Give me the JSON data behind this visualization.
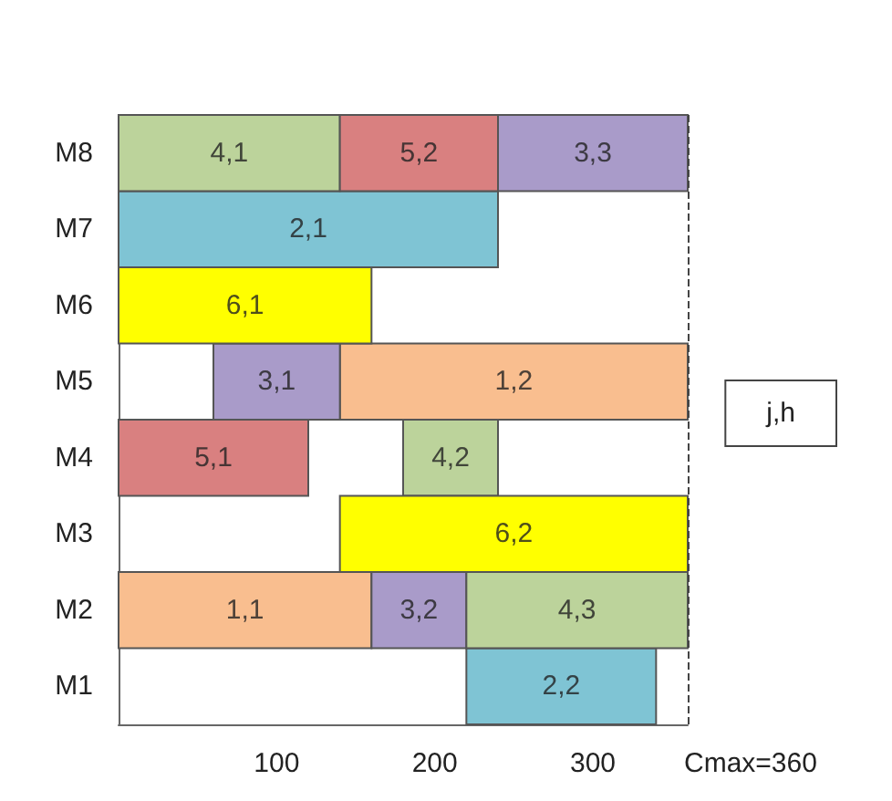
{
  "chart_data": {
    "type": "bar",
    "orientation": "horizontal",
    "categories": [
      "M8",
      "M7",
      "M6",
      "M5",
      "M4",
      "M3",
      "M2",
      "M1"
    ],
    "series": [
      {
        "color": "#f9be8f",
        "base": [
          null,
          null,
          null,
          140,
          null,
          null,
          0,
          null
        ],
        "values": [
          null,
          null,
          null,
          220,
          null,
          null,
          160,
          null
        ]
      },
      {
        "color": "#7fc4d4",
        "base": [
          null,
          0,
          null,
          null,
          null,
          null,
          null,
          220
        ],
        "values": [
          null,
          240,
          null,
          null,
          null,
          null,
          null,
          120
        ]
      },
      {
        "color": "#a99bc9",
        "base": [
          240,
          null,
          null,
          60,
          null,
          null,
          160,
          null
        ],
        "values": [
          120,
          null,
          null,
          80,
          null,
          null,
          60,
          null
        ]
      },
      {
        "color": "#bcd39b",
        "base": [
          0,
          null,
          null,
          null,
          180,
          null,
          220,
          null
        ],
        "values": [
          140,
          null,
          null,
          null,
          60,
          null,
          140,
          null
        ]
      },
      {
        "color": "#d98080",
        "base": [
          140,
          null,
          null,
          null,
          0,
          null,
          null,
          null
        ],
        "values": [
          100,
          null,
          null,
          null,
          120,
          null,
          null,
          null
        ]
      },
      {
        "color": "#ffff00",
        "base": [
          null,
          null,
          0,
          null,
          null,
          140,
          null,
          null
        ],
        "values": [
          null,
          null,
          160,
          null,
          null,
          220,
          null,
          null
        ]
      }
    ],
    "xlim": [
      0,
      360
    ],
    "xticks": [
      100,
      200,
      300
    ],
    "ref_lines": [
      {
        "axis": "x",
        "value": 360,
        "label": "Cmax=360",
        "line_style": "dashed"
      }
    ],
    "annotations": [
      "j,h",
      {
        "text": "1,2",
        "x": 250,
        "y": "M5"
      },
      {
        "text": "1,1",
        "x": 80,
        "y": "M2"
      },
      {
        "text": "2,1",
        "x": 120,
        "y": "M7"
      },
      {
        "text": "2,2",
        "x": 280,
        "y": "M1"
      },
      {
        "text": "3,3",
        "x": 300,
        "y": "M8"
      },
      {
        "text": "3,1",
        "x": 100,
        "y": "M5"
      },
      {
        "text": "3,2",
        "x": 190,
        "y": "M2"
      },
      {
        "text": "4,1",
        "x": 70,
        "y": "M8"
      },
      {
        "text": "4,2",
        "x": 210,
        "y": "M4"
      },
      {
        "text": "4,3",
        "x": 290,
        "y": "M2"
      },
      {
        "text": "5,2",
        "x": 190,
        "y": "M8"
      },
      {
        "text": "5,1",
        "x": 60,
        "y": "M4"
      },
      {
        "text": "6,1",
        "x": 80,
        "y": "M6"
      },
      {
        "text": "6,2",
        "x": 250,
        "y": "M3"
      }
    ],
    "grid": false
  }
}
